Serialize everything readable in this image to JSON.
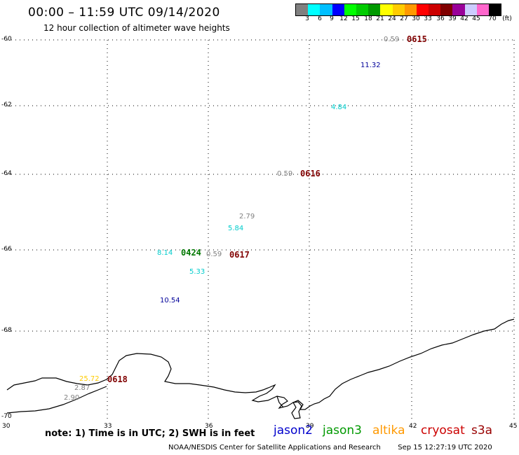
{
  "header": {
    "title": "00:00 – 11:59 UTC 09/14/2020",
    "subtitle": "12 hour collection of altimeter wave heights"
  },
  "legend": {
    "unit": "(ft)",
    "colors": [
      "#808080",
      "#00ffff",
      "#00bfff",
      "#0000ff",
      "#00ff00",
      "#00cc00",
      "#009900",
      "#ffff00",
      "#ffcc00",
      "#ff9900",
      "#ff0000",
      "#cc0000",
      "#800000",
      "#990099",
      "#ccccff",
      "#ff66cc",
      "#000000"
    ],
    "ticks": [
      "3",
      "6",
      "9",
      "12",
      "15",
      "18",
      "21",
      "24",
      "27",
      "30",
      "33",
      "36",
      "39",
      "42",
      "45",
      "70"
    ]
  },
  "map": {
    "lat_labels": [
      "-60",
      "-62",
      "-64",
      "-66",
      "-68",
      "-70"
    ],
    "lon_labels": [
      "30",
      "33",
      "36",
      "39",
      "42",
      "45"
    ]
  },
  "observations": [
    {
      "text": "0.59",
      "color": "#808080"
    },
    {
      "text": "11.32",
      "color": "#000099"
    },
    {
      "text": "4.84",
      "color": "#00cccc"
    },
    {
      "text": "0.59",
      "color": "#808080"
    },
    {
      "text": "2.79",
      "color": "#808080"
    },
    {
      "text": "5.84",
      "color": "#00cccc"
    },
    {
      "text": "8.14",
      "color": "#00cccc"
    },
    {
      "text": "0.59",
      "color": "#808080"
    },
    {
      "text": "5.33",
      "color": "#00cccc"
    },
    {
      "text": "10.54",
      "color": "#000099"
    },
    {
      "text": "25.72",
      "color": "#ffcc00"
    },
    {
      "text": "2.87",
      "color": "#808080"
    },
    {
      "text": "2.90",
      "color": "#808080"
    }
  ],
  "time_labels": [
    {
      "text": "0615",
      "color": "#800000"
    },
    {
      "text": "0616",
      "color": "#800000"
    },
    {
      "text": "0424",
      "color": "#007700"
    },
    {
      "text": "0617",
      "color": "#800000"
    },
    {
      "text": "0618",
      "color": "#800000"
    }
  ],
  "footer": {
    "note": "note: 1) Time is in UTC; 2) SWH is in feet",
    "satellites": [
      {
        "name": "jason2",
        "color": "#0000cc"
      },
      {
        "name": "jason3",
        "color": "#009900"
      },
      {
        "name": "altika",
        "color": "#ff9900"
      },
      {
        "name": "cryosat",
        "color": "#cc0000"
      },
      {
        "name": "s3a",
        "color": "#990000"
      }
    ],
    "credit": "NOAA/NESDIS Center for Satellite Applications and Research",
    "timestamp": "Sep 15 12:27:19 UTC 2020"
  }
}
